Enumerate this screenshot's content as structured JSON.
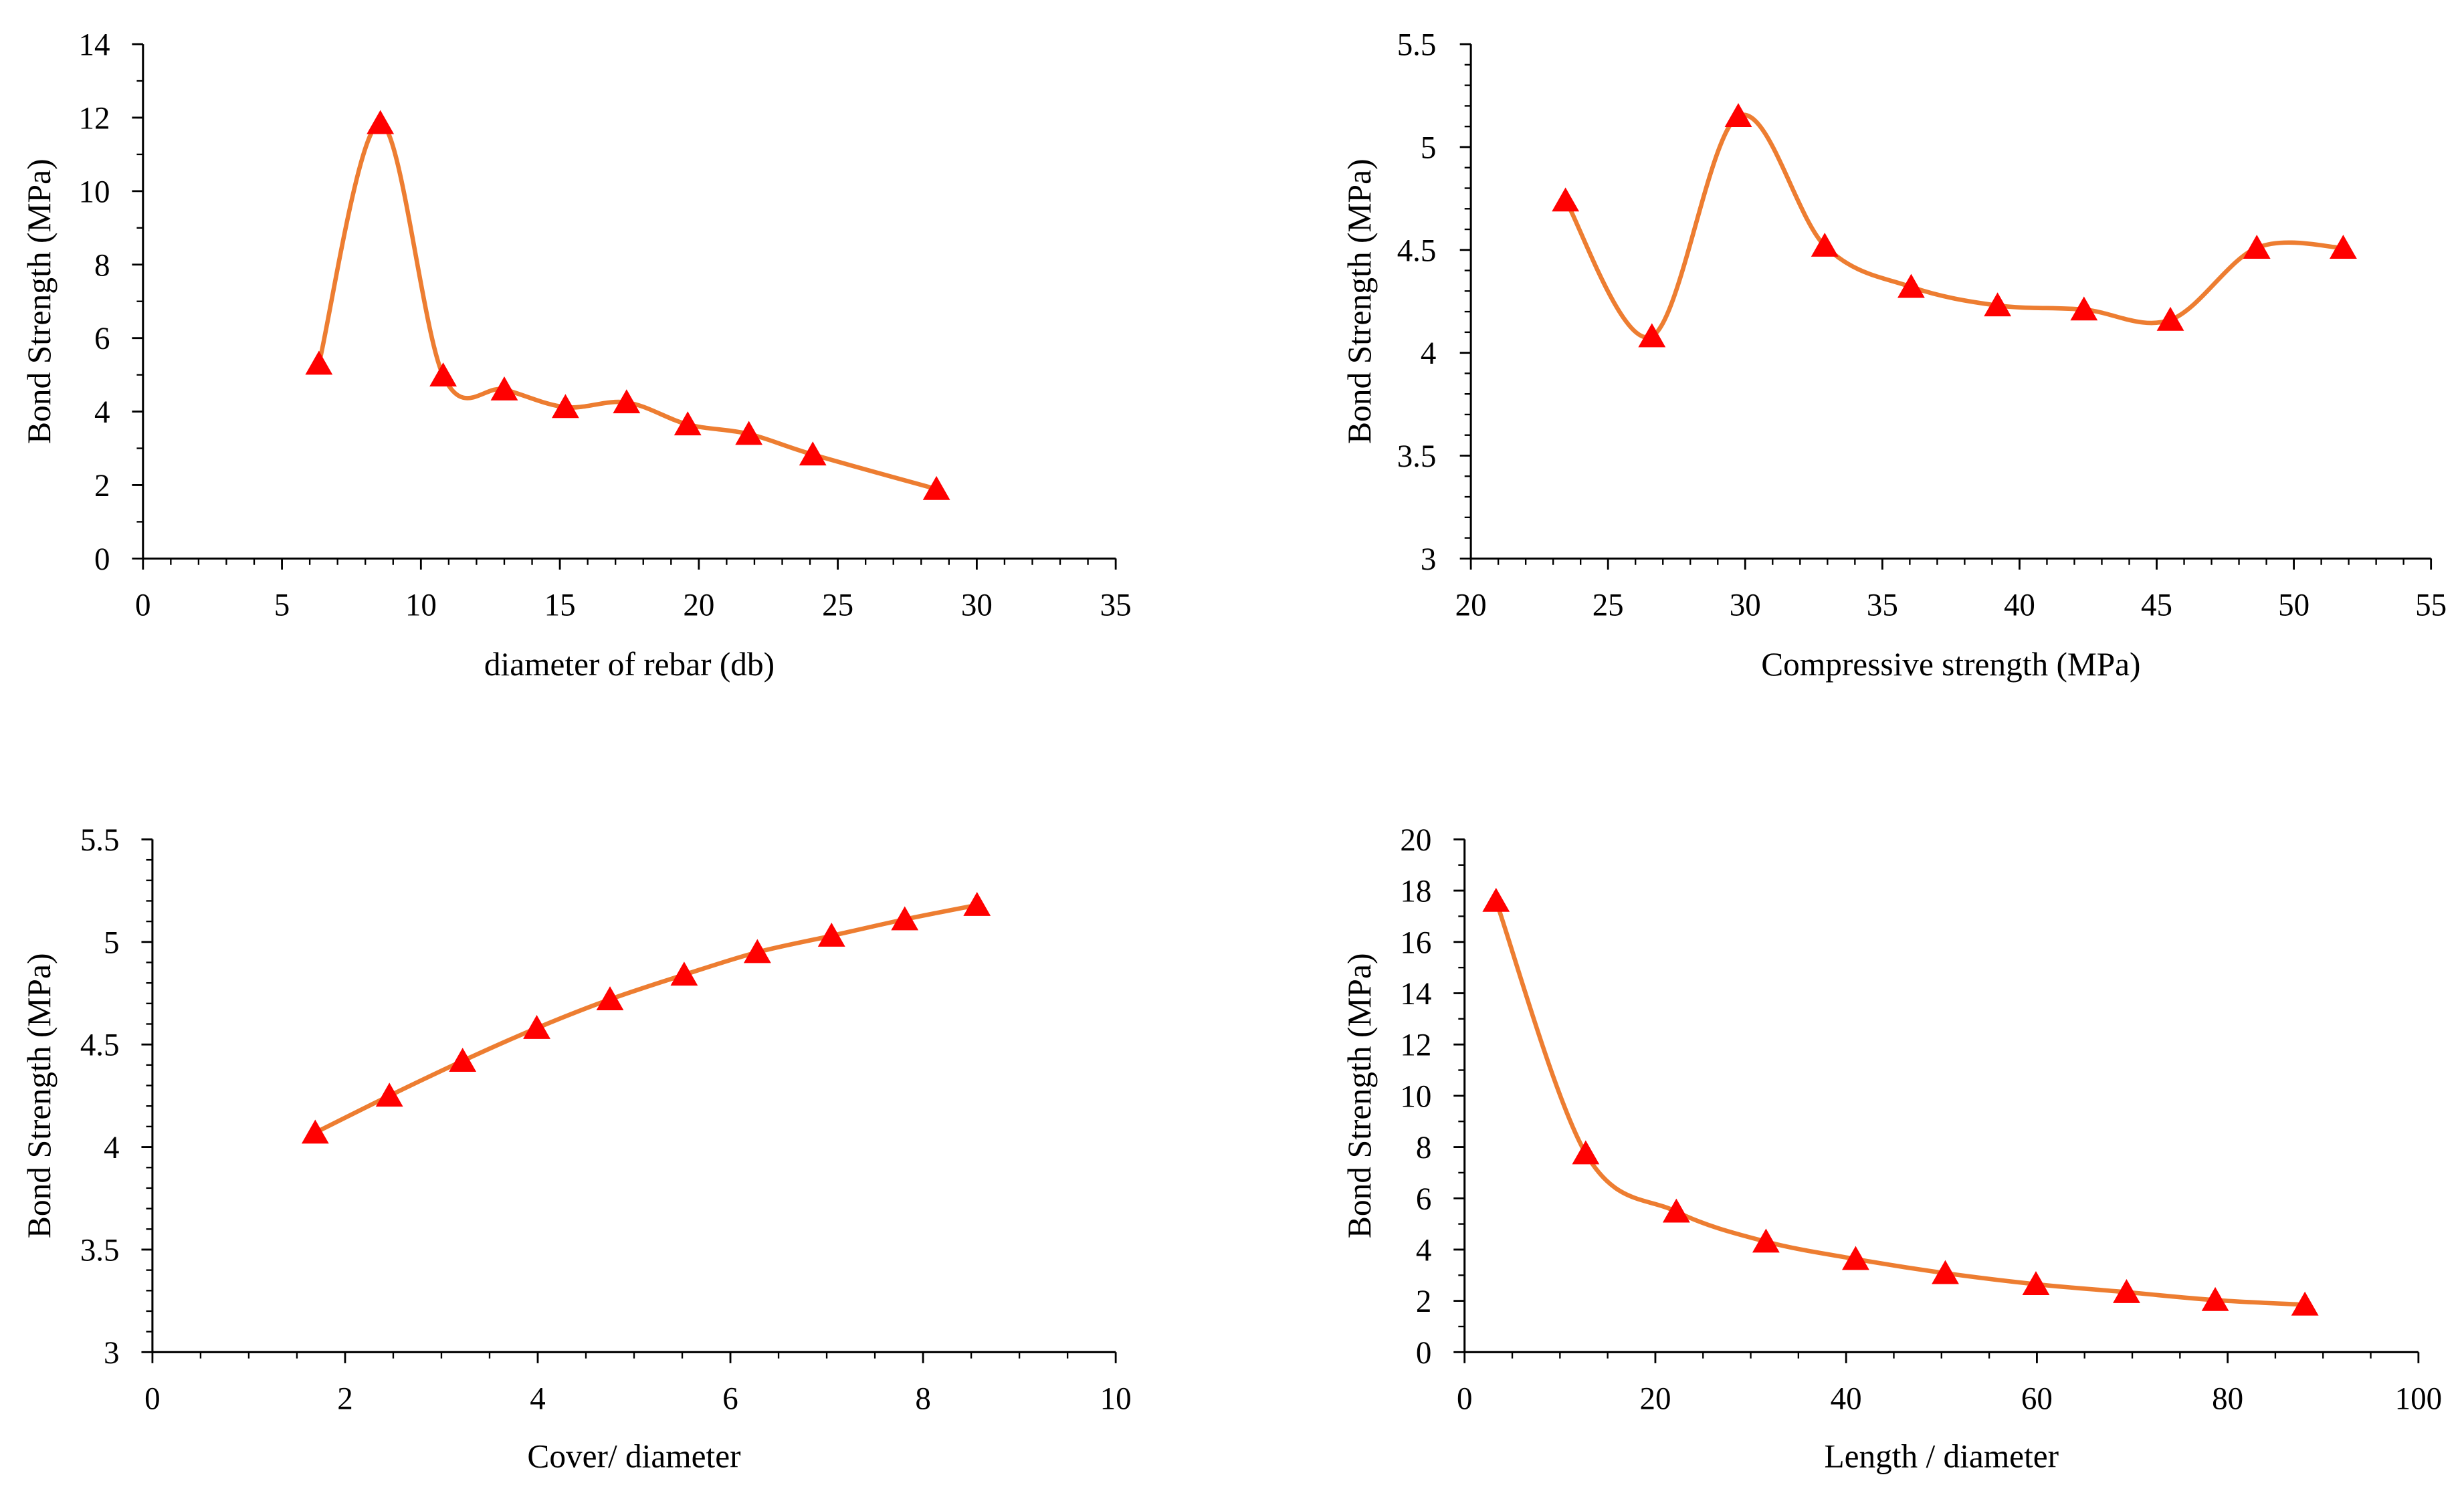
{
  "chart_data": [
    {
      "type": "line",
      "title": "",
      "xlabel": "diameter of rebar (db)",
      "ylabel": "Bond Strength (MPa)",
      "xlim": [
        0,
        35
      ],
      "ylim": [
        0,
        14
      ],
      "xticks": [
        0,
        5,
        10,
        15,
        20,
        25,
        30,
        35
      ],
      "yticks": [
        0,
        2,
        4,
        6,
        8,
        10,
        12,
        14
      ],
      "xminor": 1,
      "yminor": 1,
      "grid": false,
      "series": [
        {
          "x": [
            6.33,
            8.54,
            10.8,
            13.0,
            15.2,
            17.4,
            19.6,
            21.8,
            24.1,
            28.55
          ],
          "y": [
            5.3,
            11.85,
            4.98,
            4.6,
            4.12,
            4.25,
            3.65,
            3.39,
            2.83,
            1.89
          ],
          "line_color": "#ED7D31",
          "marker": "triangle",
          "marker_color": "#FF0000",
          "smooth": true
        }
      ]
    },
    {
      "type": "line",
      "title": "",
      "xlabel": "Compressive strength (MPa)",
      "ylabel": "Bond Strength (MPa)",
      "xlim": [
        20,
        55
      ],
      "ylim": [
        3,
        5.5
      ],
      "xticks": [
        20,
        25,
        30,
        35,
        40,
        45,
        50,
        55
      ],
      "yticks": [
        3,
        3.5,
        4,
        4.5,
        5,
        5.5
      ],
      "xminor": 1,
      "yminor": 0.1,
      "grid": false,
      "series": [
        {
          "x": [
            23.45,
            26.6,
            29.75,
            32.9,
            36.05,
            39.2,
            42.35,
            45.5,
            48.65,
            51.8
          ],
          "y": [
            4.74,
            4.08,
            5.15,
            4.52,
            4.32,
            4.23,
            4.21,
            4.16,
            4.51,
            4.51
          ],
          "line_color": "#ED7D31",
          "marker": "triangle",
          "marker_color": "#FF0000",
          "smooth": true
        }
      ]
    },
    {
      "type": "line",
      "title": "",
      "xlabel": "Cover/ diameter",
      "ylabel": "Bond Strength (MPa)",
      "xlim": [
        0,
        10
      ],
      "ylim": [
        3,
        5.5
      ],
      "xticks": [
        0,
        2,
        4,
        6,
        8,
        10
      ],
      "yticks": [
        3,
        3.5,
        4,
        4.5,
        5,
        5.5
      ],
      "xminor": 0.5,
      "yminor": 0.1,
      "grid": false,
      "series": [
        {
          "x": [
            1.69,
            2.46,
            3.22,
            3.99,
            4.75,
            5.52,
            6.28,
            7.05,
            7.81,
            8.56
          ],
          "y": [
            4.07,
            4.25,
            4.42,
            4.58,
            4.72,
            4.84,
            4.95,
            5.03,
            5.11,
            5.18
          ],
          "line_color": "#ED7D31",
          "marker": "triangle",
          "marker_color": "#FF0000",
          "smooth": true
        }
      ]
    },
    {
      "type": "line",
      "title": "",
      "xlabel": "Length / diameter",
      "ylabel": "Bond Strength (MPa)",
      "xlim": [
        0,
        100
      ],
      "ylim": [
        0,
        20
      ],
      "xticks": [
        0,
        20,
        40,
        60,
        80,
        100
      ],
      "yticks": [
        0,
        2,
        4,
        6,
        8,
        10,
        12,
        14,
        16,
        18,
        20
      ],
      "xminor": 5,
      "yminor": 1,
      "grid": false,
      "series": [
        {
          "x": [
            3.3,
            12.7,
            22.2,
            31.6,
            41.0,
            50.4,
            59.9,
            69.4,
            78.7,
            88.1
          ],
          "y": [
            17.6,
            7.75,
            5.48,
            4.31,
            3.63,
            3.08,
            2.65,
            2.34,
            2.03,
            1.85
          ],
          "line_color": "#ED7D31",
          "marker": "triangle",
          "marker_color": "#FF0000",
          "smooth": true
        }
      ]
    }
  ]
}
